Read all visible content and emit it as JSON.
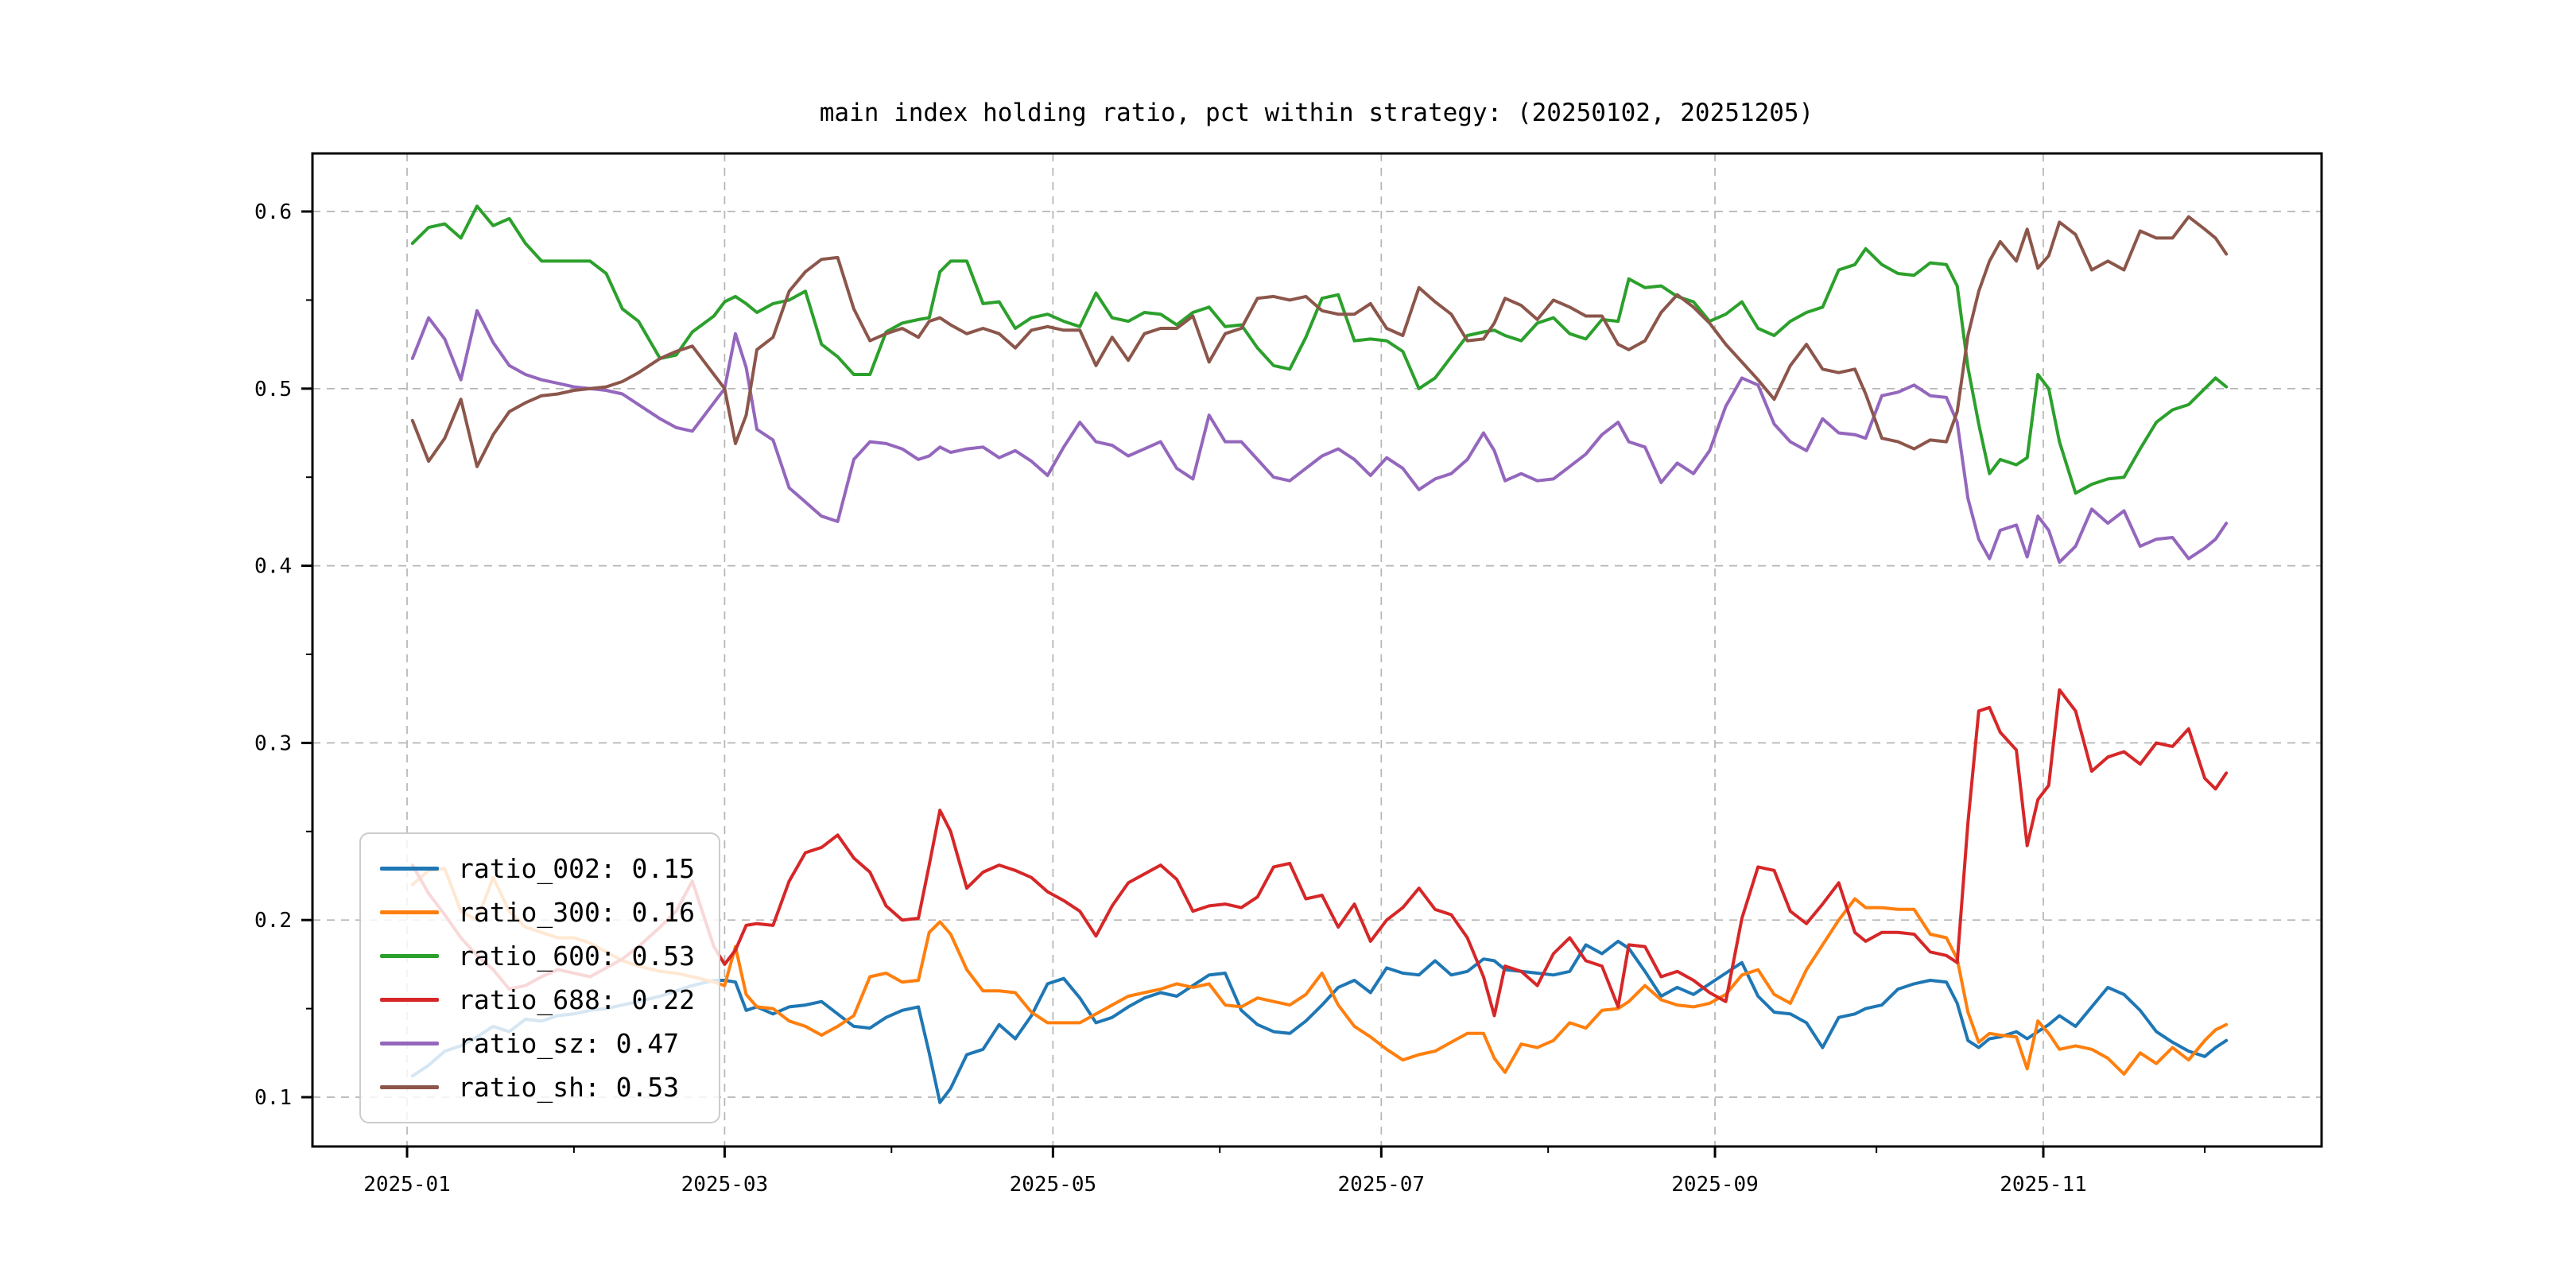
{
  "title": "main index holding ratio, pct within strategy: (20250102, 20251205)",
  "chart_data": {
    "type": "line",
    "title": "main index holding ratio, pct within strategy: (20250102, 20251205)",
    "grid": true,
    "legend_position": "lower left",
    "x_axis": {
      "tick_labels": [
        "2025-01",
        "2025-03",
        "2025-05",
        "2025-07",
        "2025-09",
        "2025-11"
      ],
      "tick_days": [
        1,
        60,
        121,
        182,
        244,
        305
      ],
      "minor_tick_days": [
        32,
        91,
        152,
        213,
        274,
        335
      ],
      "note": "day index, 2025-01-01 = 1"
    },
    "y_axis": {
      "tick_labels": [
        "0.1",
        "0.2",
        "0.3",
        "0.4",
        "0.5",
        "0.6"
      ],
      "ticks": [
        0.1,
        0.2,
        0.3,
        0.4,
        0.5,
        0.6
      ],
      "minor_ticks": [
        0.15,
        0.25,
        0.35,
        0.45,
        0.55
      ],
      "range": [
        0.072,
        0.633
      ]
    },
    "x_days": [
      2,
      5,
      8,
      11,
      14,
      17,
      20,
      23,
      26,
      29,
      32,
      35,
      38,
      41,
      44,
      48,
      51,
      54,
      58,
      60,
      62,
      64,
      66,
      69,
      72,
      75,
      78,
      81,
      84,
      87,
      90,
      93,
      96,
      98,
      100,
      102,
      105,
      108,
      111,
      114,
      117,
      120,
      123,
      126,
      129,
      132,
      135,
      138,
      141,
      144,
      147,
      150,
      153,
      156,
      159,
      162,
      165,
      168,
      171,
      174,
      177,
      180,
      183,
      186,
      189,
      192,
      195,
      198,
      201,
      203,
      205,
      208,
      211,
      214,
      217,
      220,
      223,
      226,
      228,
      231,
      234,
      237,
      240,
      243,
      246,
      249,
      252,
      255,
      258,
      261,
      264,
      267,
      270,
      272,
      275,
      278,
      281,
      284,
      287,
      289,
      291,
      293,
      295,
      297,
      300,
      302,
      304,
      306,
      308,
      311,
      314,
      317,
      320,
      323,
      326,
      329,
      332,
      335,
      337,
      339
    ],
    "series": [
      {
        "name": "ratio_002",
        "legend_label": "ratio_002: 0.15",
        "mean": 0.15,
        "color": "#1f77b4",
        "values": [
          0.112,
          0.118,
          0.126,
          0.129,
          0.134,
          0.14,
          0.137,
          0.144,
          0.143,
          0.146,
          0.147,
          0.149,
          0.15,
          0.152,
          0.154,
          0.157,
          0.16,
          0.163,
          0.166,
          0.166,
          0.165,
          0.149,
          0.151,
          0.147,
          0.151,
          0.152,
          0.154,
          0.147,
          0.14,
          0.139,
          0.145,
          0.149,
          0.151,
          0.125,
          0.097,
          0.105,
          0.124,
          0.127,
          0.141,
          0.133,
          0.146,
          0.164,
          0.167,
          0.156,
          0.142,
          0.145,
          0.151,
          0.156,
          0.159,
          0.157,
          0.163,
          0.169,
          0.17,
          0.149,
          0.141,
          0.137,
          0.136,
          0.143,
          0.152,
          0.162,
          0.166,
          0.159,
          0.173,
          0.17,
          0.169,
          0.177,
          0.169,
          0.171,
          0.178,
          0.177,
          0.172,
          0.171,
          0.17,
          0.169,
          0.171,
          0.186,
          0.181,
          0.188,
          0.184,
          0.171,
          0.157,
          0.162,
          0.158,
          0.164,
          0.17,
          0.176,
          0.157,
          0.148,
          0.147,
          0.142,
          0.128,
          0.145,
          0.147,
          0.15,
          0.152,
          0.161,
          0.164,
          0.166,
          0.165,
          0.153,
          0.132,
          0.128,
          0.133,
          0.134,
          0.137,
          0.133,
          0.137,
          0.141,
          0.146,
          0.14,
          0.151,
          0.162,
          0.158,
          0.149,
          0.137,
          0.131,
          0.126,
          0.123,
          0.128,
          0.132
        ]
      },
      {
        "name": "ratio_300",
        "legend_label": "ratio_300: 0.16",
        "mean": 0.16,
        "color": "#ff7f0e",
        "values": [
          0.22,
          0.228,
          0.229,
          0.205,
          0.2,
          0.224,
          0.205,
          0.196,
          0.193,
          0.19,
          0.19,
          0.187,
          0.182,
          0.177,
          0.174,
          0.171,
          0.17,
          0.168,
          0.165,
          0.163,
          0.185,
          0.158,
          0.151,
          0.15,
          0.143,
          0.14,
          0.135,
          0.14,
          0.146,
          0.168,
          0.17,
          0.165,
          0.166,
          0.193,
          0.199,
          0.192,
          0.172,
          0.16,
          0.16,
          0.159,
          0.148,
          0.142,
          0.142,
          0.142,
          0.147,
          0.152,
          0.157,
          0.159,
          0.161,
          0.164,
          0.162,
          0.164,
          0.152,
          0.151,
          0.156,
          0.154,
          0.152,
          0.158,
          0.17,
          0.152,
          0.14,
          0.134,
          0.127,
          0.121,
          0.124,
          0.126,
          0.131,
          0.136,
          0.136,
          0.122,
          0.114,
          0.13,
          0.128,
          0.132,
          0.142,
          0.139,
          0.149,
          0.15,
          0.154,
          0.163,
          0.155,
          0.152,
          0.151,
          0.153,
          0.158,
          0.169,
          0.172,
          0.158,
          0.153,
          0.172,
          0.186,
          0.2,
          0.212,
          0.207,
          0.207,
          0.206,
          0.206,
          0.192,
          0.19,
          0.178,
          0.148,
          0.131,
          0.136,
          0.135,
          0.134,
          0.116,
          0.143,
          0.136,
          0.127,
          0.129,
          0.127,
          0.122,
          0.113,
          0.125,
          0.119,
          0.128,
          0.121,
          0.132,
          0.138,
          0.141
        ]
      },
      {
        "name": "ratio_600",
        "legend_label": "ratio_600: 0.53",
        "mean": 0.53,
        "color": "#2ca02c",
        "values": [
          0.582,
          0.591,
          0.593,
          0.585,
          0.603,
          0.592,
          0.596,
          0.582,
          0.572,
          0.572,
          0.572,
          0.572,
          0.565,
          0.545,
          0.538,
          0.517,
          0.519,
          0.532,
          0.541,
          0.549,
          0.552,
          0.548,
          0.543,
          0.548,
          0.55,
          0.555,
          0.525,
          0.518,
          0.508,
          0.508,
          0.532,
          0.537,
          0.539,
          0.54,
          0.566,
          0.572,
          0.572,
          0.548,
          0.549,
          0.534,
          0.54,
          0.542,
          0.538,
          0.535,
          0.554,
          0.54,
          0.538,
          0.543,
          0.542,
          0.536,
          0.543,
          0.546,
          0.535,
          0.536,
          0.523,
          0.513,
          0.511,
          0.529,
          0.551,
          0.553,
          0.527,
          0.528,
          0.527,
          0.521,
          0.5,
          0.506,
          0.518,
          0.53,
          0.532,
          0.533,
          0.53,
          0.527,
          0.537,
          0.54,
          0.531,
          0.528,
          0.539,
          0.538,
          0.562,
          0.557,
          0.558,
          0.552,
          0.549,
          0.538,
          0.542,
          0.549,
          0.534,
          0.53,
          0.538,
          0.543,
          0.546,
          0.567,
          0.57,
          0.579,
          0.57,
          0.565,
          0.564,
          0.571,
          0.57,
          0.558,
          0.512,
          0.48,
          0.452,
          0.46,
          0.457,
          0.461,
          0.508,
          0.5,
          0.47,
          0.441,
          0.446,
          0.449,
          0.45,
          0.466,
          0.481,
          0.488,
          0.491,
          0.5,
          0.506,
          0.501
        ]
      },
      {
        "name": "ratio_688",
        "legend_label": "ratio_688: 0.22",
        "mean": 0.22,
        "color": "#d62728",
        "values": [
          0.231,
          0.215,
          0.203,
          0.19,
          0.18,
          0.172,
          0.161,
          0.163,
          0.168,
          0.172,
          0.17,
          0.168,
          0.173,
          0.178,
          0.185,
          0.196,
          0.205,
          0.222,
          0.185,
          0.175,
          0.183,
          0.197,
          0.198,
          0.197,
          0.222,
          0.238,
          0.241,
          0.248,
          0.235,
          0.227,
          0.208,
          0.2,
          0.201,
          0.231,
          0.262,
          0.25,
          0.218,
          0.227,
          0.231,
          0.228,
          0.224,
          0.216,
          0.211,
          0.205,
          0.191,
          0.208,
          0.221,
          0.226,
          0.231,
          0.223,
          0.205,
          0.208,
          0.209,
          0.207,
          0.213,
          0.23,
          0.232,
          0.212,
          0.214,
          0.196,
          0.209,
          0.188,
          0.2,
          0.207,
          0.218,
          0.206,
          0.203,
          0.19,
          0.168,
          0.146,
          0.174,
          0.171,
          0.163,
          0.181,
          0.19,
          0.177,
          0.174,
          0.151,
          0.186,
          0.185,
          0.168,
          0.171,
          0.166,
          0.159,
          0.154,
          0.201,
          0.23,
          0.228,
          0.205,
          0.198,
          0.209,
          0.221,
          0.193,
          0.188,
          0.193,
          0.193,
          0.192,
          0.182,
          0.18,
          0.176,
          0.255,
          0.318,
          0.32,
          0.306,
          0.296,
          0.242,
          0.268,
          0.276,
          0.33,
          0.318,
          0.284,
          0.292,
          0.295,
          0.288,
          0.3,
          0.298,
          0.308,
          0.28,
          0.274,
          0.283
        ]
      },
      {
        "name": "ratio_sz",
        "legend_label": "ratio_sz: 0.47",
        "mean": 0.47,
        "color": "#9467bd",
        "values": [
          0.517,
          0.54,
          0.528,
          0.505,
          0.544,
          0.526,
          0.513,
          0.508,
          0.505,
          0.503,
          0.501,
          0.5,
          0.499,
          0.497,
          0.491,
          0.483,
          0.478,
          0.476,
          0.492,
          0.5,
          0.531,
          0.512,
          0.477,
          0.471,
          0.444,
          0.436,
          0.428,
          0.425,
          0.46,
          0.47,
          0.469,
          0.466,
          0.46,
          0.462,
          0.467,
          0.464,
          0.466,
          0.467,
          0.461,
          0.465,
          0.459,
          0.451,
          0.467,
          0.481,
          0.47,
          0.468,
          0.462,
          0.466,
          0.47,
          0.455,
          0.449,
          0.485,
          0.47,
          0.47,
          0.46,
          0.45,
          0.448,
          0.455,
          0.462,
          0.466,
          0.46,
          0.451,
          0.461,
          0.455,
          0.443,
          0.449,
          0.452,
          0.46,
          0.475,
          0.465,
          0.448,
          0.452,
          0.448,
          0.449,
          0.456,
          0.463,
          0.474,
          0.481,
          0.47,
          0.467,
          0.447,
          0.458,
          0.452,
          0.465,
          0.49,
          0.506,
          0.502,
          0.48,
          0.47,
          0.465,
          0.483,
          0.475,
          0.474,
          0.472,
          0.496,
          0.498,
          0.502,
          0.496,
          0.495,
          0.481,
          0.438,
          0.415,
          0.404,
          0.42,
          0.423,
          0.405,
          0.428,
          0.42,
          0.402,
          0.411,
          0.432,
          0.424,
          0.431,
          0.411,
          0.415,
          0.416,
          0.404,
          0.41,
          0.415,
          0.424
        ]
      },
      {
        "name": "ratio_sh",
        "legend_label": "ratio_sh: 0.53",
        "mean": 0.53,
        "color": "#8c564b",
        "values": [
          0.482,
          0.459,
          0.472,
          0.494,
          0.456,
          0.474,
          0.487,
          0.492,
          0.496,
          0.497,
          0.499,
          0.5,
          0.501,
          0.504,
          0.509,
          0.517,
          0.521,
          0.524,
          0.508,
          0.5,
          0.469,
          0.485,
          0.522,
          0.529,
          0.555,
          0.566,
          0.573,
          0.574,
          0.545,
          0.527,
          0.531,
          0.534,
          0.529,
          0.538,
          0.54,
          0.536,
          0.531,
          0.534,
          0.531,
          0.523,
          0.533,
          0.535,
          0.533,
          0.533,
          0.513,
          0.529,
          0.516,
          0.531,
          0.534,
          0.534,
          0.541,
          0.515,
          0.531,
          0.534,
          0.551,
          0.552,
          0.55,
          0.552,
          0.544,
          0.542,
          0.542,
          0.548,
          0.534,
          0.53,
          0.557,
          0.549,
          0.542,
          0.527,
          0.528,
          0.537,
          0.551,
          0.547,
          0.539,
          0.55,
          0.546,
          0.541,
          0.541,
          0.525,
          0.522,
          0.527,
          0.543,
          0.553,
          0.546,
          0.537,
          0.525,
          0.515,
          0.505,
          0.494,
          0.513,
          0.525,
          0.511,
          0.509,
          0.511,
          0.497,
          0.472,
          0.47,
          0.466,
          0.471,
          0.47,
          0.487,
          0.53,
          0.555,
          0.572,
          0.583,
          0.572,
          0.59,
          0.568,
          0.575,
          0.594,
          0.587,
          0.567,
          0.572,
          0.567,
          0.589,
          0.585,
          0.585,
          0.597,
          0.59,
          0.585,
          0.576
        ]
      }
    ]
  },
  "style": {
    "background": "#ffffff",
    "grid_color": "#b5b5b5",
    "spine_color": "#000000",
    "legend_border_color": "#cccccc"
  }
}
